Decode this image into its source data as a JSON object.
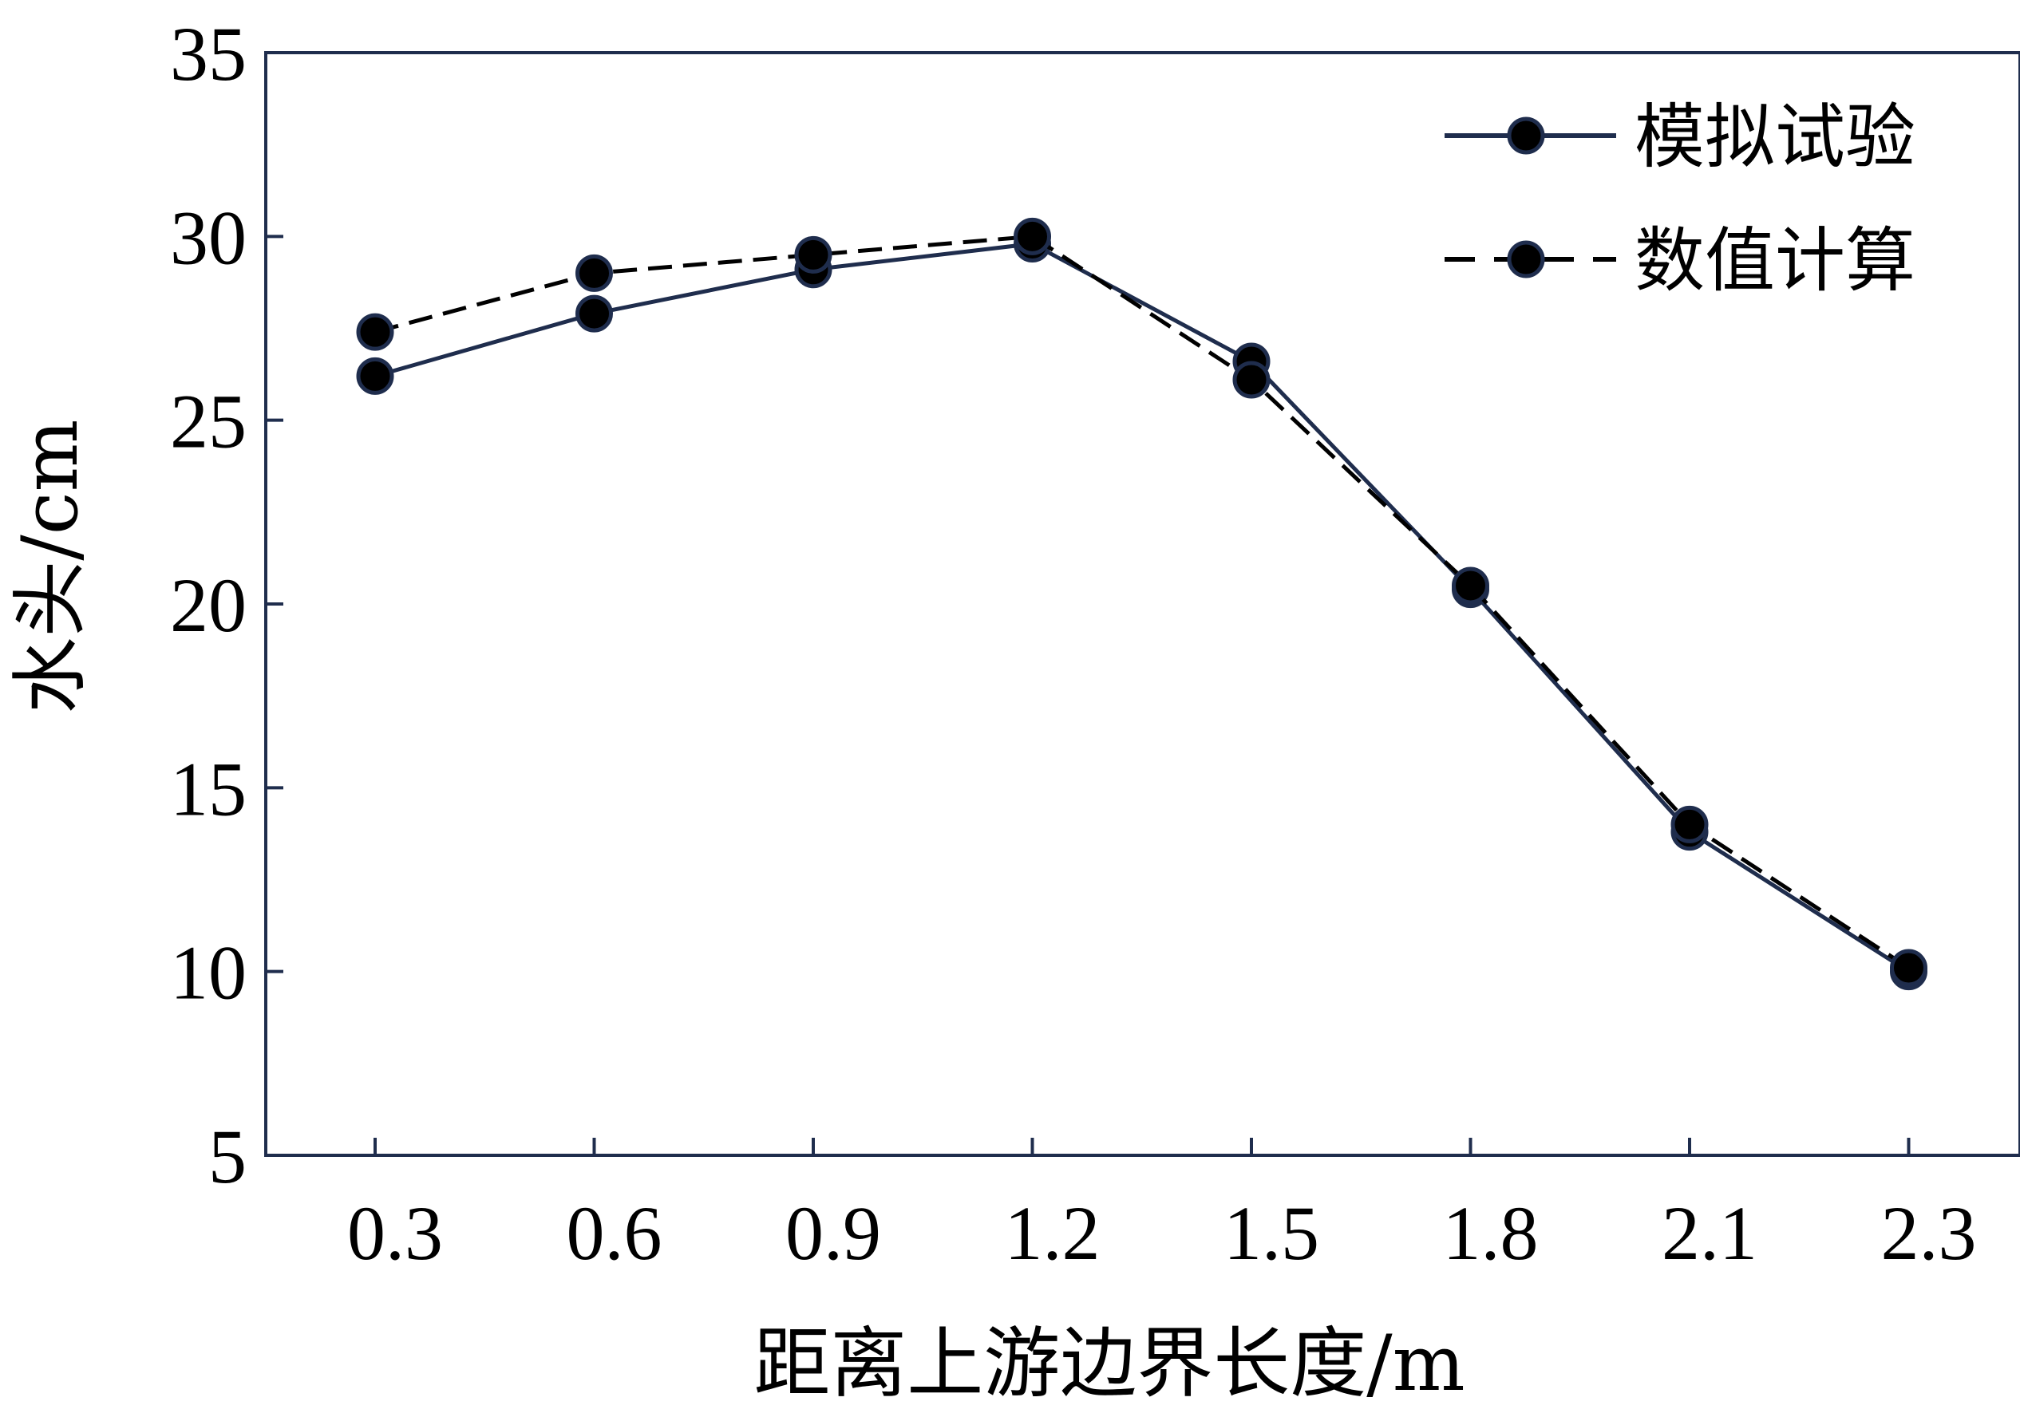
{
  "chart_data": {
    "type": "line",
    "title": "",
    "xlabel": "距离上游边界长度/m",
    "ylabel": "水头/cm",
    "categories": [
      "0.3",
      "0.6",
      "0.9",
      "1.2",
      "1.5",
      "1.8",
      "2.1",
      "2.3"
    ],
    "y_ticks": [
      "5",
      "10",
      "15",
      "20",
      "25",
      "30",
      "35"
    ],
    "ylim": [
      5,
      35
    ],
    "grid": false,
    "legend_position": "top-right",
    "series": [
      {
        "name": "模拟试验",
        "line_style": "solid",
        "color": "#1f2d4d",
        "marker_color": "#000000",
        "values": [
          26.2,
          27.9,
          29.1,
          29.8,
          26.6,
          20.4,
          13.8,
          10.0
        ]
      },
      {
        "name": "数值计算",
        "line_style": "dashed",
        "color": "#000000",
        "marker_color": "#000000",
        "values": [
          27.4,
          29.0,
          29.5,
          30.0,
          26.1,
          20.5,
          14.0,
          10.1
        ]
      }
    ]
  }
}
